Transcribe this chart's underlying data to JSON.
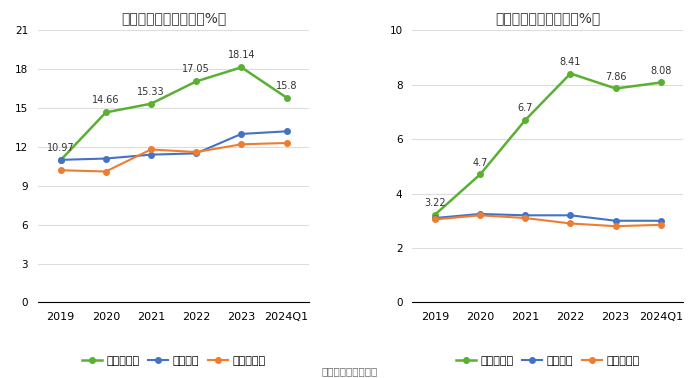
{
  "left_title": "历年毛利率变化情况（%）",
  "right_title": "历年净利率变化情况（%）",
  "x_labels": [
    "2019",
    "2020",
    "2021",
    "2022",
    "2023",
    "2024Q1"
  ],
  "gross_company": [
    10.97,
    14.66,
    15.33,
    17.05,
    18.14,
    15.8
  ],
  "gross_industry_avg": [
    11.0,
    11.1,
    11.4,
    11.5,
    13.0,
    13.2
  ],
  "gross_industry_med": [
    10.2,
    10.1,
    11.8,
    11.6,
    12.2,
    12.3
  ],
  "net_company": [
    3.22,
    4.7,
    6.7,
    8.41,
    7.86,
    8.08
  ],
  "net_industry_avg": [
    3.1,
    3.25,
    3.2,
    3.2,
    3.0,
    3.0
  ],
  "net_industry_med": [
    3.05,
    3.2,
    3.1,
    2.9,
    2.8,
    2.85
  ],
  "left_ylim": [
    0,
    21
  ],
  "left_yticks": [
    0,
    3,
    6,
    9,
    12,
    15,
    18,
    21
  ],
  "right_ylim": [
    0,
    10
  ],
  "right_yticks": [
    0,
    2,
    4,
    6,
    8,
    10
  ],
  "color_company": "#5ab032",
  "color_avg": "#4472c4",
  "color_med": "#ed7d31",
  "legend_left": [
    "公司毛利率",
    "行业均值",
    "行业中位数"
  ],
  "legend_right": [
    "公司净利率",
    "行业均值",
    "行业中位数"
  ],
  "footer": "数据来源：恒生聚源",
  "bg_color": "#ffffff",
  "grid_color": "#dddddd"
}
